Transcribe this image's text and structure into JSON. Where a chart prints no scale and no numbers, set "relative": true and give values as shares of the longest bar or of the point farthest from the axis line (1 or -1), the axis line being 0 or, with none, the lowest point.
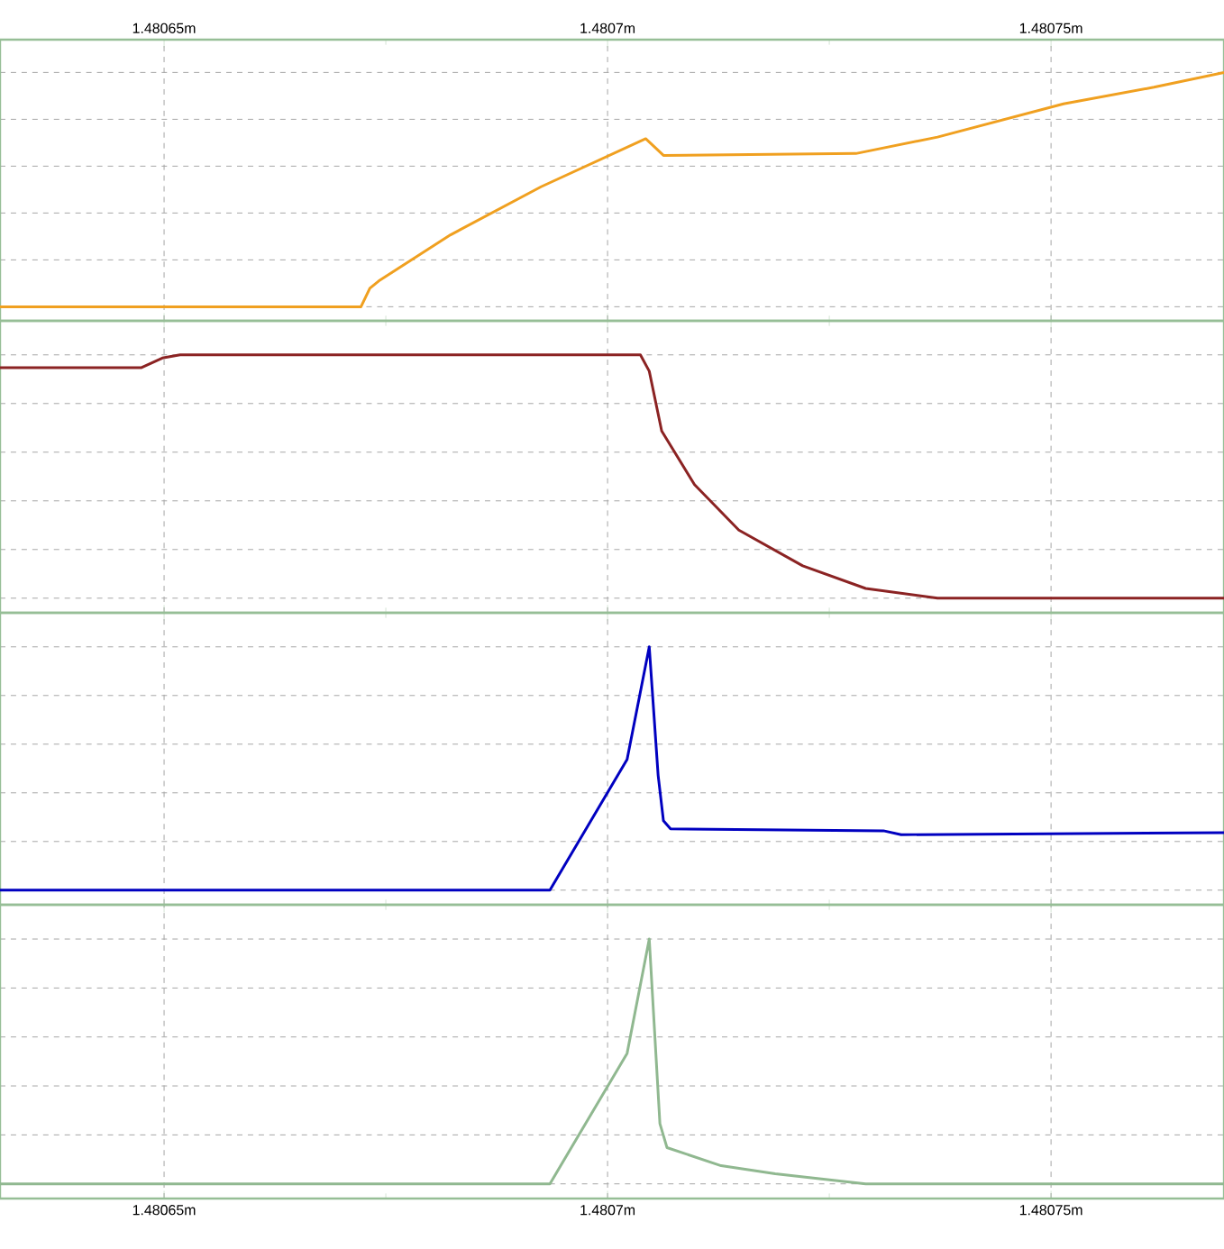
{
  "chart_data": [
    {
      "type": "line",
      "relative": true,
      "color": "#f0a020",
      "grid": true,
      "tick_labels": "x",
      "xlim": [
        1.4806315,
        1.4807695
      ],
      "xticks": [
        {
          "value": 1.48065,
          "label": "1.48065m"
        },
        {
          "value": 1.4807,
          "label": "1.4807m"
        },
        {
          "value": 1.48075,
          "label": "1.48075m"
        }
      ],
      "x": [
        1.4806315,
        1.4806722,
        1.4806732,
        1.4806742,
        1.4806823,
        1.4806925,
        1.4807043,
        1.4807063,
        1.480728,
        1.4807372,
        1.4807514,
        1.4807616,
        1.4807695
      ],
      "values": [
        0,
        0,
        0.079,
        0.11,
        0.307,
        0.512,
        0.717,
        0.646,
        0.654,
        0.724,
        0.866,
        0.937,
        1
      ]
    },
    {
      "type": "line",
      "relative": true,
      "color": "#8b2323",
      "grid": true,
      "tick_labels": false,
      "xlim": [
        1.4806315,
        1.4807695
      ],
      "xticks": [
        {
          "value": 1.48065,
          "label": null
        },
        {
          "value": 1.4807,
          "label": null
        },
        {
          "value": 1.48075,
          "label": null
        }
      ],
      "x": [
        1.4806315,
        1.4806474,
        1.4806498,
        1.4806518,
        1.4807037,
        1.4807047,
        1.4807061,
        1.4807098,
        1.4807148,
        1.480722,
        1.4807291,
        1.4807372,
        1.4807695
      ],
      "values": [
        0.947,
        0.947,
        0.987,
        1,
        1,
        0.933,
        0.687,
        0.467,
        0.28,
        0.133,
        0.04,
        0,
        0
      ]
    },
    {
      "type": "line",
      "relative": true,
      "color": "#0000c0",
      "grid": true,
      "tick_labels": false,
      "xlim": [
        1.4806315,
        1.4807695
      ],
      "xticks": [
        {
          "value": 1.48065,
          "label": null
        },
        {
          "value": 1.4807,
          "label": null
        },
        {
          "value": 1.48075,
          "label": null
        }
      ],
      "x": [
        1.4806315,
        1.4806935,
        1.4807022,
        1.4807047,
        1.4807057,
        1.4807063,
        1.4807071,
        1.4807311,
        1.4807331,
        1.4807695
      ],
      "values": [
        0,
        0,
        0.537,
        1,
        0.472,
        0.285,
        0.252,
        0.244,
        0.228,
        0.236
      ]
    },
    {
      "type": "line",
      "relative": true,
      "color": "#90b890",
      "grid": true,
      "tick_labels": "x",
      "xlim": [
        1.4806315,
        1.4807695
      ],
      "xticks": [
        {
          "value": 1.48065,
          "label": "1.48065m"
        },
        {
          "value": 1.4807,
          "label": "1.4807m"
        },
        {
          "value": 1.48075,
          "label": "1.48075m"
        }
      ],
      "x": [
        1.4806315,
        1.4806935,
        1.4807022,
        1.4807047,
        1.4807059,
        1.4807067,
        1.4807128,
        1.4807189,
        1.4807291,
        1.4807695
      ],
      "values": [
        0,
        0,
        0.533,
        1,
        0.246,
        0.148,
        0.074,
        0.041,
        0,
        0
      ]
    }
  ]
}
